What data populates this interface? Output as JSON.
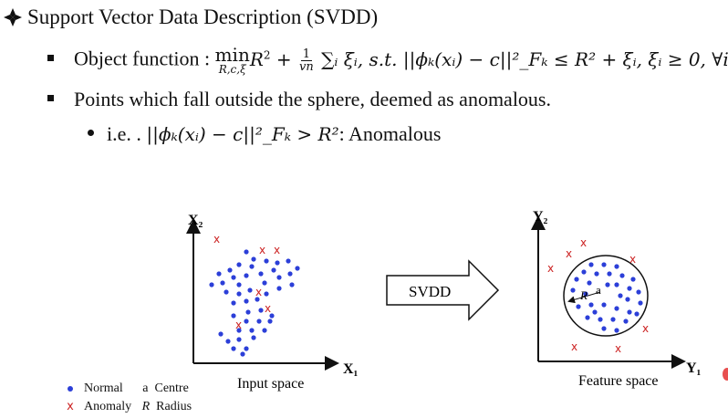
{
  "title": "Support Vector Data Description (SVDD)",
  "bullet1": {
    "label": "Object function : ",
    "formula_min": "min",
    "formula_min_sub": "R,c,ξ",
    "formula_r2": "R",
    "formula_frac_num": "1",
    "formula_frac_den": "vn",
    "formula_rest": "∑ᵢ ξᵢ, s.t. ||ϕₖ(xᵢ) − c||²_Fₖ ≤ R² + ξᵢ, ξᵢ ≥ 0, ∀i"
  },
  "bullet2": "Points which fall outside the sphere, deemed as anomalous.",
  "bullet3": {
    "prefix": "i.e. . ",
    "formula": "||ϕₖ(xᵢ) − c||²_Fₖ > R²",
    "suffix": ": Anomalous"
  },
  "diagram": {
    "input_axis_x": "X₁",
    "input_axis_y": "X₂",
    "input_caption": "Input space",
    "arrow_label": "SVDD",
    "feature_axis_x": "Y₁",
    "feature_axis_y": "Y₂",
    "feature_caption": "Feature space",
    "radius_label": "R",
    "centre_label": "a",
    "normal_color": "#2c3fd8",
    "anomaly_color": "#cc2222"
  },
  "legend": {
    "normal": "Normal",
    "centre_symbol": "a",
    "centre": "Centre",
    "anomaly_symbol": "x",
    "anomaly": "Anomaly",
    "radius_symbol": "R",
    "radius": "Radius"
  }
}
